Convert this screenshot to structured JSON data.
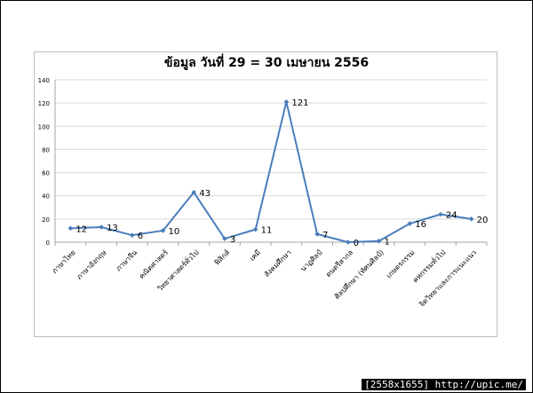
{
  "chart_data": {
    "type": "line",
    "title": "ข้อมูล วันที่ 29 = 30 เมษายน 2556",
    "categories": [
      "ภาษาไทย",
      "ภาษาอังกฤษ",
      "ภาษาจีน",
      "คณิตศาสตร์",
      "วิทยาศาสตร์ทั่วไป",
      "ฟิสิกส์",
      "เคมี",
      "สังคมศึกษา",
      "นาฏศิลป์",
      "ดนตรีสากล",
      "ศิลปศึกษา (ทัศนศิลป์)",
      "เกษตรกรรม",
      "คหกรรมทั่วไป",
      "จิตวิทยาและการแนะแนว"
    ],
    "series": [
      {
        "values": [
          12,
          13,
          6,
          10,
          43,
          3,
          11,
          121,
          7,
          0,
          1,
          16,
          24,
          20
        ],
        "color": "#4a7ebb"
      }
    ],
    "data_labels": [
      "12",
      "13",
      "6",
      "10",
      "43",
      "3",
      "11",
      "121",
      "7",
      "0",
      "1",
      "16",
      "24",
      "20"
    ],
    "y_ticks": [
      "0",
      "20",
      "40",
      "60",
      "80",
      "100",
      "120",
      "140"
    ],
    "ylim": [
      0,
      140
    ],
    "grid": "horizontal",
    "legend": "none"
  },
  "watermark": "[2558x1655] http://upic.me/"
}
